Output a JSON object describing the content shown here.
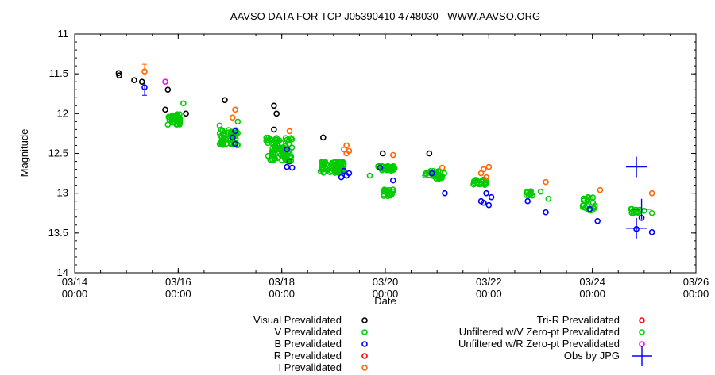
{
  "chart_data": {
    "type": "scatter",
    "title": "AAVSO DATA FOR TCP J05390410 4748030 - WWW.AAVSO.ORG",
    "xlabel": "Date",
    "ylabel": "Magnitude",
    "ylim": [
      14,
      11
    ],
    "y_reversed": true,
    "xlim": [
      0,
      12
    ],
    "x_unit": "days since 03/14 00:00",
    "x_ticks": [
      {
        "v": 0,
        "l1": "03/14",
        "l2": "00:00"
      },
      {
        "v": 2,
        "l1": "03/16",
        "l2": "00:00"
      },
      {
        "v": 4,
        "l1": "03/18",
        "l2": "00:00"
      },
      {
        "v": 6,
        "l1": "03/20",
        "l2": "00:00"
      },
      {
        "v": 8,
        "l1": "03/22",
        "l2": "00:00"
      },
      {
        "v": 10,
        "l1": "03/24",
        "l2": "00:00"
      },
      {
        "v": 12,
        "l1": "03/26",
        "l2": "00:00"
      }
    ],
    "y_ticks": [
      "11",
      "11.5",
      "12",
      "12.5",
      "13",
      "13.5",
      "14"
    ],
    "y_tick_values": [
      11,
      11.5,
      12,
      12.5,
      13,
      13.5,
      14
    ],
    "grid": false,
    "legend_position": "bottom",
    "legend": [
      {
        "name": "Visual Prevalidated",
        "color": "#000000",
        "marker": "circle"
      },
      {
        "name": "V Prevalidated",
        "color": "#00cc00",
        "marker": "circle"
      },
      {
        "name": "B Prevalidated",
        "color": "#0000ff",
        "marker": "circle"
      },
      {
        "name": "R Prevalidated",
        "color": "#ff0000",
        "marker": "circle"
      },
      {
        "name": "I Prevalidated",
        "color": "#ff6600",
        "marker": "circle"
      },
      {
        "name": "Tri-R Prevalidated",
        "color": "#ff0000",
        "marker": "circle"
      },
      {
        "name": "Unfiltered w/V Zero-pt Prevalidated",
        "color": "#00cc00",
        "marker": "circle"
      },
      {
        "name": "Unfiltered w/R Zero-pt Prevalidated",
        "color": "#ff00ff",
        "marker": "circle"
      },
      {
        "name": "Obs by JPG",
        "color": "#0000ff",
        "marker": "cross"
      }
    ],
    "series": [
      {
        "name": "Visual Prevalidated",
        "color": "#000000",
        "points": [
          [
            0.85,
            11.49
          ],
          [
            0.86,
            11.52
          ],
          [
            1.15,
            11.58
          ],
          [
            1.3,
            11.6
          ],
          [
            1.8,
            11.7
          ],
          [
            1.75,
            11.95
          ],
          [
            2.15,
            12.0
          ],
          [
            2.9,
            11.83
          ],
          [
            3.85,
            11.9
          ],
          [
            3.9,
            12.0
          ],
          [
            3.85,
            12.2
          ],
          [
            4.8,
            12.3
          ],
          [
            5.95,
            12.5
          ],
          [
            6.85,
            12.5
          ]
        ]
      },
      {
        "name": "V Prevalidated",
        "color": "#00cc00",
        "clusters": [
          {
            "x0": 1.8,
            "x1": 2.05,
            "y0": 12.0,
            "y1": 12.15,
            "n": 40
          },
          {
            "x0": 2.8,
            "x1": 3.15,
            "y0": 12.2,
            "y1": 12.4,
            "n": 50
          },
          {
            "x0": 3.7,
            "x1": 4.2,
            "y0": 12.3,
            "y1": 12.6,
            "n": 70
          },
          {
            "x0": 4.75,
            "x1": 5.2,
            "y0": 12.6,
            "y1": 12.75,
            "n": 60
          },
          {
            "x0": 5.85,
            "x1": 6.2,
            "y0": 12.65,
            "y1": 12.72,
            "n": 35
          },
          {
            "x0": 5.95,
            "x1": 6.15,
            "y0": 12.95,
            "y1": 13.05,
            "n": 20
          },
          {
            "x0": 6.75,
            "x1": 7.15,
            "y0": 12.72,
            "y1": 12.82,
            "n": 30
          },
          {
            "x0": 7.7,
            "x1": 7.95,
            "y0": 12.83,
            "y1": 12.9,
            "n": 20
          },
          {
            "x0": 8.7,
            "x1": 8.85,
            "y0": 12.97,
            "y1": 13.03,
            "n": 10
          },
          {
            "x0": 9.8,
            "x1": 10.05,
            "y0": 13.05,
            "y1": 13.25,
            "n": 20
          },
          {
            "x0": 10.7,
            "x1": 10.95,
            "y0": 13.18,
            "y1": 13.25,
            "n": 12
          }
        ],
        "points": [
          [
            2.1,
            11.87
          ],
          [
            2.8,
            12.15
          ],
          [
            3.15,
            12.1
          ],
          [
            5.7,
            12.78
          ],
          [
            9.0,
            12.98
          ],
          [
            9.15,
            13.07
          ],
          [
            11.15,
            13.25
          ],
          [
            11.0,
            13.22
          ]
        ]
      },
      {
        "name": "B Prevalidated",
        "color": "#0000ff",
        "points": [
          [
            1.35,
            11.67
          ],
          [
            3.1,
            12.22
          ],
          [
            3.05,
            12.3
          ],
          [
            3.1,
            12.38
          ],
          [
            4.1,
            12.45
          ],
          [
            4.15,
            12.6
          ],
          [
            4.2,
            12.68
          ],
          [
            4.1,
            12.67
          ],
          [
            5.2,
            12.72
          ],
          [
            5.25,
            12.78
          ],
          [
            5.15,
            12.8
          ],
          [
            5.3,
            12.75
          ],
          [
            5.9,
            12.68
          ],
          [
            6.15,
            12.84
          ],
          [
            6.9,
            12.75
          ],
          [
            7.15,
            13.0
          ],
          [
            7.85,
            13.1
          ],
          [
            8.0,
            13.15
          ],
          [
            7.9,
            13.12
          ],
          [
            8.05,
            13.05
          ],
          [
            7.95,
            13.0
          ],
          [
            8.75,
            13.1
          ],
          [
            9.1,
            13.24
          ],
          [
            9.95,
            13.2
          ],
          [
            10.1,
            13.35
          ],
          [
            10.85,
            13.45
          ],
          [
            10.95,
            13.31
          ],
          [
            11.15,
            13.49
          ]
        ]
      },
      {
        "name": "I Prevalidated",
        "color": "#ff6600",
        "points": [
          [
            1.35,
            11.47
          ],
          [
            3.1,
            11.95
          ],
          [
            3.05,
            12.05
          ],
          [
            4.15,
            12.22
          ],
          [
            5.25,
            12.4
          ],
          [
            5.2,
            12.45
          ],
          [
            5.3,
            12.47
          ],
          [
            5.25,
            12.5
          ],
          [
            6.15,
            12.52
          ],
          [
            7.1,
            12.68
          ],
          [
            7.9,
            12.7
          ],
          [
            8.0,
            12.67
          ],
          [
            7.85,
            12.75
          ],
          [
            7.95,
            12.8
          ],
          [
            9.1,
            12.86
          ],
          [
            10.15,
            12.96
          ],
          [
            11.15,
            13.0
          ]
        ]
      },
      {
        "name": "Unfiltered w/R Zero-pt Prevalidated",
        "color": "#ff00ff",
        "points": [
          [
            1.75,
            11.6
          ]
        ]
      },
      {
        "name": "Obs by JPG",
        "color": "#0000ff",
        "marker": "cross",
        "points": [
          [
            10.85,
            12.67
          ],
          [
            10.85,
            13.44
          ],
          [
            10.95,
            13.2
          ]
        ]
      }
    ]
  }
}
